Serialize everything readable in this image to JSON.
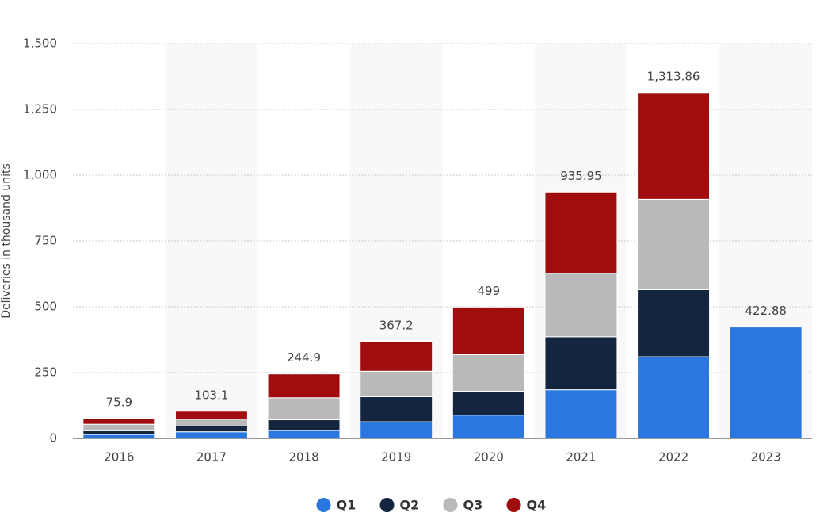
{
  "chart_data": {
    "type": "stacked_bar",
    "y_label": "Deliveries in thousand units",
    "categories": [
      "2016",
      "2017",
      "2018",
      "2019",
      "2020",
      "2021",
      "2022",
      "2023"
    ],
    "series": [
      {
        "name": "Q1",
        "color": "#2a78df",
        "values": [
          14.82,
          25,
          29.98,
          63,
          88.4,
          184.8,
          310.05,
          422.88
        ]
      },
      {
        "name": "Q2",
        "color": "#14263f",
        "values": [
          14.37,
          22.03,
          40.74,
          95.2,
          90.65,
          201.25,
          254.7,
          null
        ]
      },
      {
        "name": "Q3",
        "color": "#b9b9b9",
        "values": [
          24.5,
          26.15,
          83.5,
          97,
          139.3,
          241.3,
          343.83,
          null
        ]
      },
      {
        "name": "Q4",
        "color": "#a10c0e",
        "values": [
          22.2,
          29.97,
          90.7,
          112,
          180.57,
          308.6,
          405.28,
          null
        ]
      }
    ],
    "totals": {
      "values": [
        75.9,
        103.1,
        244.9,
        367.2,
        499,
        935.95,
        1313.86,
        422.88
      ],
      "value_labels": [
        "75.9",
        "103.1",
        "244.9",
        "367.2",
        "499",
        "935.95",
        "1,313.86",
        "422.88"
      ]
    },
    "ylim": [
      0,
      1500
    ],
    "yticks": [
      0,
      250,
      500,
      750,
      {
        "value": 1000,
        "label": "1,000"
      },
      {
        "value": 1250,
        "label": "1,250"
      },
      {
        "value": 1500,
        "label": "1,500"
      }
    ],
    "grid": true,
    "legend": "bottom"
  }
}
